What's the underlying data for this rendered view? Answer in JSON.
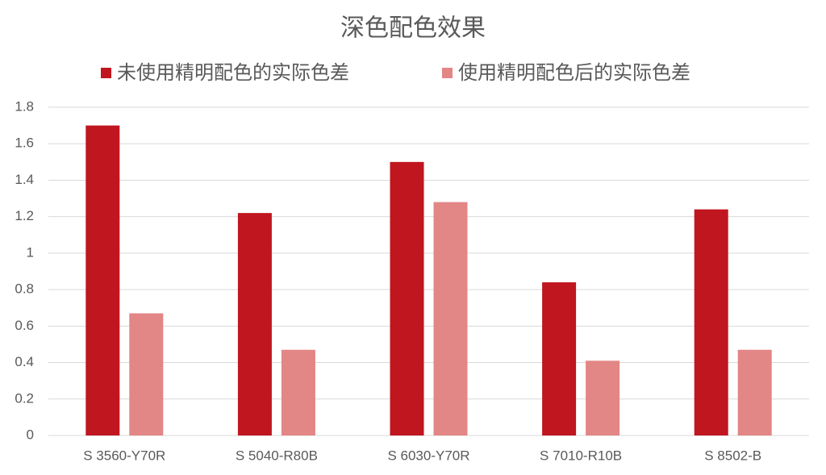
{
  "chart_data": {
    "type": "bar",
    "title": "深色配色效果",
    "categories": [
      "S 3560-Y70R",
      "S 5040-R80B",
      "S 6030-Y70R",
      "S 7010-R10B",
      "S 8502-B"
    ],
    "series": [
      {
        "name": "未使用精明配色的实际色差",
        "color": "#c0161f",
        "values": [
          1.7,
          1.22,
          1.5,
          0.84,
          1.24
        ]
      },
      {
        "name": "使用精明配色后的实际色差",
        "color": "#e38686",
        "values": [
          0.67,
          0.47,
          1.28,
          0.41,
          0.47
        ]
      }
    ],
    "ylim": [
      0,
      1.8
    ],
    "yticks": [
      0,
      0.2,
      0.4,
      0.6,
      0.8,
      1,
      1.2,
      1.4,
      1.6,
      1.8
    ],
    "grid": true,
    "legend": "top"
  }
}
